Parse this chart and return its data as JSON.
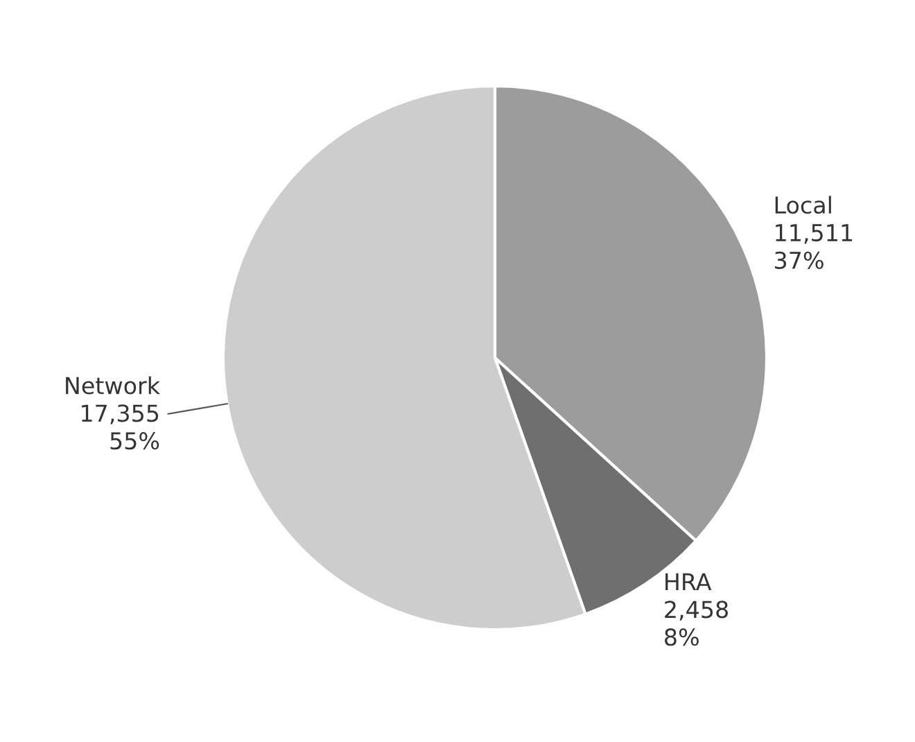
{
  "chart_data": {
    "type": "pie",
    "categories": [
      "Local",
      "HRA",
      "Network"
    ],
    "values": [
      11511,
      2458,
      17355
    ],
    "colors": [
      "#9c9c9c",
      "#6f6f6f",
      "#cdcdcd"
    ],
    "value_labels": [
      "11,511\n37%",
      "2,458\n8%",
      "17,355\n55%"
    ]
  }
}
